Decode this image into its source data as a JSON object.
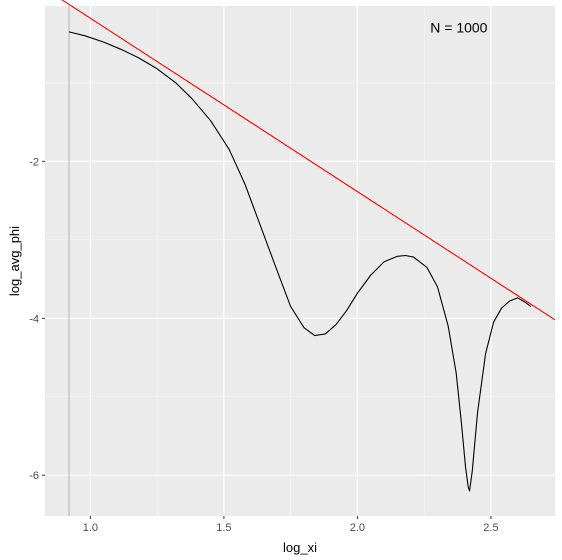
{
  "chart_data": {
    "type": "line",
    "title": "",
    "xlabel": "log_xi",
    "ylabel": "log_avg_phi",
    "xlim": [
      0.83,
      2.74
    ],
    "ylim": [
      -6.52,
      -0.02
    ],
    "x_ticks": [
      1.0,
      1.5,
      2.0,
      2.5
    ],
    "x_tick_labels": [
      "1.0",
      "1.5",
      "2.0",
      "2.5"
    ],
    "y_ticks": [
      -6,
      -4,
      -2
    ],
    "y_tick_labels": [
      "-6",
      "-4",
      "-2"
    ],
    "grid": true,
    "background": "#ebebeb",
    "annotation": {
      "text": "N = 1000",
      "x": 2.38,
      "y": -0.36
    },
    "vline": {
      "x": 0.92,
      "color": "#b3b3b3"
    },
    "series": [
      {
        "color": "#000000",
        "points": [
          [
            0.92,
            -0.35
          ],
          [
            0.98,
            -0.4
          ],
          [
            1.05,
            -0.48
          ],
          [
            1.12,
            -0.58
          ],
          [
            1.18,
            -0.68
          ],
          [
            1.25,
            -0.82
          ],
          [
            1.32,
            -1.0
          ],
          [
            1.38,
            -1.2
          ],
          [
            1.45,
            -1.48
          ],
          [
            1.52,
            -1.85
          ],
          [
            1.58,
            -2.3
          ],
          [
            1.64,
            -2.85
          ],
          [
            1.7,
            -3.4
          ],
          [
            1.75,
            -3.85
          ],
          [
            1.8,
            -4.12
          ],
          [
            1.84,
            -4.22
          ],
          [
            1.88,
            -4.2
          ],
          [
            1.92,
            -4.08
          ],
          [
            1.96,
            -3.9
          ],
          [
            2.0,
            -3.68
          ],
          [
            2.05,
            -3.45
          ],
          [
            2.1,
            -3.28
          ],
          [
            2.15,
            -3.21
          ],
          [
            2.18,
            -3.2
          ],
          [
            2.21,
            -3.22
          ],
          [
            2.26,
            -3.35
          ],
          [
            2.3,
            -3.6
          ],
          [
            2.34,
            -4.1
          ],
          [
            2.37,
            -4.7
          ],
          [
            2.39,
            -5.35
          ],
          [
            2.405,
            -5.9
          ],
          [
            2.415,
            -6.15
          ],
          [
            2.42,
            -6.2
          ],
          [
            2.43,
            -5.95
          ],
          [
            2.45,
            -5.2
          ],
          [
            2.48,
            -4.45
          ],
          [
            2.51,
            -4.05
          ],
          [
            2.54,
            -3.87
          ],
          [
            2.57,
            -3.78
          ],
          [
            2.6,
            -3.74
          ],
          [
            2.63,
            -3.8
          ],
          [
            2.65,
            -3.85
          ]
        ]
      },
      {
        "color": "#ff0000",
        "points": [
          [
            0.83,
            0.2
          ],
          [
            2.74,
            -4.02
          ]
        ]
      }
    ]
  }
}
